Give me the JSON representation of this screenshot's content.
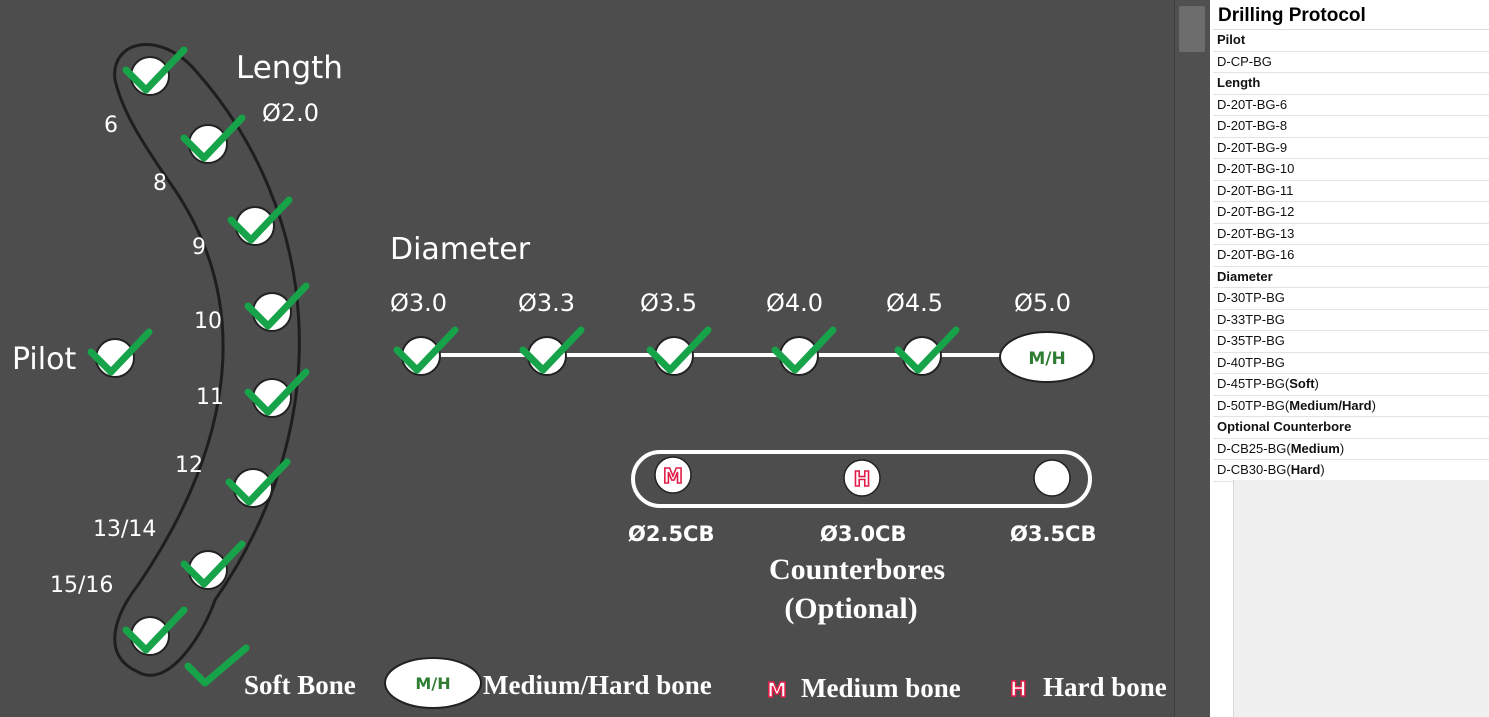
{
  "diagram": {
    "length_title": "Length",
    "length_diameter": "Ø2.0",
    "length_labels": [
      "6",
      "8",
      "9",
      "10",
      "11",
      "12",
      "13/14",
      "15/16"
    ],
    "pilot_label": "Pilot",
    "diameter_title": "Diameter",
    "diameter_labels": [
      "Ø3.0",
      "Ø3.3",
      "Ø3.5",
      "Ø4.0",
      "Ø4.5",
      "Ø5.0"
    ],
    "mh_badge": "M/H",
    "counterbore_labels": [
      "Ø2.5CB",
      "Ø3.0CB",
      "Ø3.5CB"
    ],
    "counterbore_markers": [
      "M",
      "H"
    ],
    "counterbores_title_line1": "Counterbores",
    "counterbores_title_line2": "(Optional)",
    "legend": {
      "soft": "Soft Bone",
      "mh_badge": "M/H",
      "medium_hard": "Medium/Hard bone",
      "m_icon": "M",
      "medium": "Medium bone",
      "h_icon": "H",
      "hard": "Hard bone"
    },
    "colors": {
      "check": "#16a34a",
      "background": "#4d4d4d",
      "marker_red": "#e11d48",
      "badge_text": "#2e7d32"
    }
  },
  "protocol": {
    "title": "Drilling Protocol",
    "rows": [
      {
        "text": "Pilot",
        "header": true
      },
      {
        "text": "D-CP-BG"
      },
      {
        "text": "Length",
        "header": true
      },
      {
        "text": "D-20T-BG-6"
      },
      {
        "text": "D-20T-BG-8"
      },
      {
        "text": "D-20T-BG-9"
      },
      {
        "text": "D-20T-BG-10"
      },
      {
        "text": "D-20T-BG-11"
      },
      {
        "text": "D-20T-BG-12"
      },
      {
        "text": "D-20T-BG-13"
      },
      {
        "text": "D-20T-BG-16"
      },
      {
        "text": "Diameter",
        "header": true
      },
      {
        "text": "D-30TP-BG"
      },
      {
        "text": "D-33TP-BG"
      },
      {
        "text": "D-35TP-BG"
      },
      {
        "text": "D-40TP-BG"
      },
      {
        "text": "D-45TP-BG",
        "suffix": "Soft"
      },
      {
        "text": "D-50TP-BG",
        "suffix": "Medium/Hard"
      },
      {
        "text": "Optional Counterbore",
        "header": true
      },
      {
        "text": "D-CB25-BG",
        "suffix": "Medium"
      },
      {
        "text": "D-CB30-BG",
        "suffix": "Hard"
      }
    ]
  }
}
